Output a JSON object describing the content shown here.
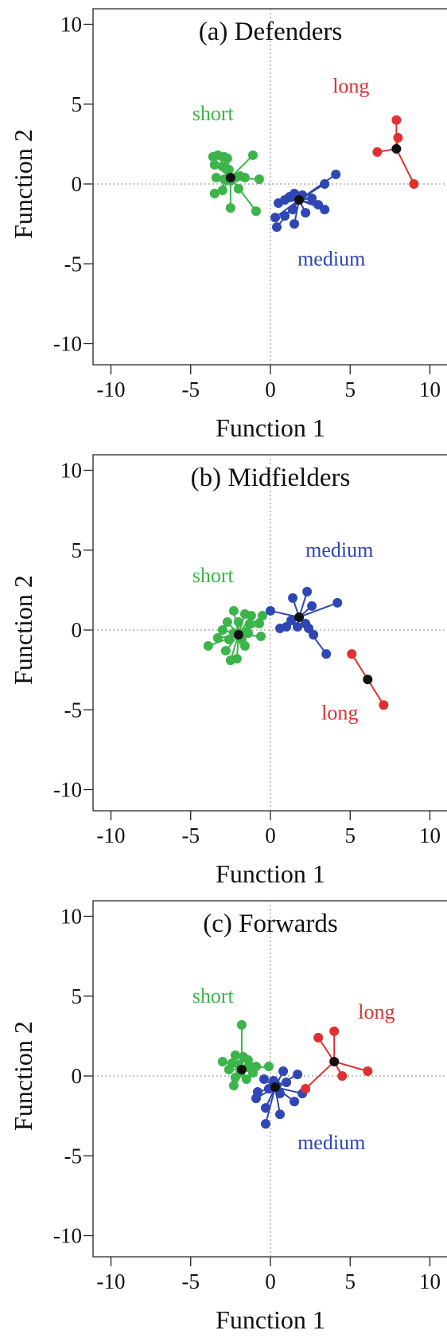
{
  "chart_data": [
    {
      "type": "scatter",
      "title": "(a) Defenders",
      "xlabel": "Function 1",
      "ylabel": "Function 2",
      "xlim": [
        -11,
        11
      ],
      "ylim": [
        -11,
        11
      ],
      "xticks": [
        -10,
        -5,
        0,
        5,
        10
      ],
      "yticks": [
        -10,
        -5,
        0,
        5,
        10
      ],
      "xtick_labels": [
        "-10",
        "-5",
        "0",
        "5",
        "10"
      ],
      "ytick_labels": [
        "-10",
        "-5",
        "0",
        "5",
        "10"
      ],
      "reference_lines": "dotted lines at x=0 and y=0",
      "groups": [
        {
          "name": "short",
          "color": "#3bb44a",
          "centroid": [
            -2.5,
            0.4
          ],
          "points": [
            [
              -3.6,
              1.7
            ],
            [
              -3.3,
              1.8
            ],
            [
              -2.9,
              1.7
            ],
            [
              -2.7,
              1.6
            ],
            [
              -1.1,
              1.8
            ],
            [
              -3.5,
              1.2
            ],
            [
              -3.0,
              1.1
            ],
            [
              -2.6,
              0.9
            ],
            [
              -1.9,
              0.5
            ],
            [
              -3.4,
              0.4
            ],
            [
              -2.9,
              0.3
            ],
            [
              -2.5,
              0.2
            ],
            [
              -2.2,
              0.4
            ],
            [
              -1.6,
              0.4
            ],
            [
              -0.7,
              0.3
            ],
            [
              -3.5,
              -0.6
            ],
            [
              -3.0,
              -0.4
            ],
            [
              -2.0,
              -0.3
            ],
            [
              -2.5,
              -1.5
            ],
            [
              -0.9,
              -1.7
            ]
          ]
        },
        {
          "name": "medium",
          "color": "#2e47b4",
          "centroid": [
            1.8,
            -1.0
          ],
          "points": [
            [
              4.1,
              0.6
            ],
            [
              3.4,
              0.0
            ],
            [
              0.5,
              -1.2
            ],
            [
              0.9,
              -1.0
            ],
            [
              1.2,
              -0.8
            ],
            [
              1.5,
              -0.6
            ],
            [
              2.0,
              -0.7
            ],
            [
              2.6,
              -0.9
            ],
            [
              3.0,
              -1.3
            ],
            [
              3.4,
              -1.6
            ],
            [
              1.4,
              -1.6
            ],
            [
              2.2,
              -1.8
            ],
            [
              0.3,
              -2.1
            ],
            [
              0.9,
              -2.0
            ],
            [
              0.4,
              -2.7
            ],
            [
              1.5,
              -2.5
            ]
          ]
        },
        {
          "name": "long",
          "color": "#e03030",
          "centroid": [
            7.9,
            2.2
          ],
          "points": [
            [
              7.9,
              4.0
            ],
            [
              8.0,
              2.9
            ],
            [
              6.7,
              2.0
            ],
            [
              9.0,
              0.0
            ]
          ]
        }
      ],
      "annotations": [
        {
          "text": "short",
          "color": "#3bb44a",
          "x": -4.9,
          "y": 4.0
        },
        {
          "text": "medium",
          "color": "#2e47b4",
          "x": 1.7,
          "y": -5.1
        },
        {
          "text": "long",
          "color": "#e03030",
          "x": 3.9,
          "y": 5.7
        }
      ]
    },
    {
      "type": "scatter",
      "title": "(b) Midfielders",
      "xlabel": "Function 1",
      "ylabel": "Function 2",
      "xlim": [
        -11,
        11
      ],
      "ylim": [
        -11,
        11
      ],
      "xticks": [
        -10,
        -5,
        0,
        5,
        10
      ],
      "yticks": [
        -10,
        -5,
        0,
        5,
        10
      ],
      "xtick_labels": [
        "-10",
        "-5",
        "0",
        "5",
        "10"
      ],
      "ytick_labels": [
        "-10",
        "-5",
        "0",
        "5",
        "10"
      ],
      "reference_lines": "dotted lines at x=0 and y=0",
      "groups": [
        {
          "name": "short",
          "color": "#3bb44a",
          "centroid": [
            -2.0,
            -0.3
          ],
          "points": [
            [
              -2.3,
              1.2
            ],
            [
              -1.6,
              1.0
            ],
            [
              -1.2,
              0.9
            ],
            [
              -0.5,
              0.9
            ],
            [
              -2.7,
              0.5
            ],
            [
              -2.0,
              0.5
            ],
            [
              -1.3,
              0.4
            ],
            [
              -0.7,
              0.4
            ],
            [
              -3.0,
              0.0
            ],
            [
              -2.3,
              -0.2
            ],
            [
              -1.4,
              -0.2
            ],
            [
              -0.6,
              -0.4
            ],
            [
              -3.3,
              -0.5
            ],
            [
              -2.6,
              -0.6
            ],
            [
              -1.8,
              -0.6
            ],
            [
              -3.9,
              -1.0
            ],
            [
              -1.6,
              -1.0
            ],
            [
              -2.8,
              -1.3
            ],
            [
              -2.5,
              -1.9
            ],
            [
              -2.1,
              -1.8
            ]
          ]
        },
        {
          "name": "medium",
          "color": "#2e47b4",
          "centroid": [
            1.8,
            0.8
          ],
          "points": [
            [
              2.3,
              2.4
            ],
            [
              1.4,
              2.0
            ],
            [
              4.2,
              1.7
            ],
            [
              2.6,
              1.5
            ],
            [
              0.0,
              1.2
            ],
            [
              1.3,
              0.6
            ],
            [
              2.2,
              0.4
            ],
            [
              0.6,
              0.1
            ],
            [
              1.0,
              0.2
            ],
            [
              1.7,
              0.2
            ],
            [
              2.4,
              0.1
            ],
            [
              2.7,
              -0.3
            ],
            [
              3.5,
              -1.5
            ]
          ]
        },
        {
          "name": "long",
          "color": "#e03030",
          "centroid": [
            6.1,
            -3.1
          ],
          "points": [
            [
              5.1,
              -1.5
            ],
            [
              7.1,
              -4.7
            ]
          ]
        }
      ],
      "annotations": [
        {
          "text": "short",
          "color": "#3bb44a",
          "x": -4.9,
          "y": 3.0
        },
        {
          "text": "medium",
          "color": "#2e47b4",
          "x": 2.2,
          "y": 4.6
        },
        {
          "text": "long",
          "color": "#e03030",
          "x": 3.2,
          "y": -5.6
        }
      ]
    },
    {
      "type": "scatter",
      "title": "(c) Forwards",
      "xlabel": "Function 1",
      "ylabel": "Function 2",
      "xlim": [
        -11,
        11
      ],
      "ylim": [
        -11,
        11
      ],
      "xticks": [
        -10,
        -5,
        0,
        5,
        10
      ],
      "yticks": [
        -10,
        -5,
        0,
        5,
        10
      ],
      "xtick_labels": [
        "-10",
        "-5",
        "0",
        "5",
        "10"
      ],
      "ytick_labels": [
        "-10",
        "-5",
        "0",
        "5",
        "10"
      ],
      "reference_lines": "dotted lines at x=0 and y=0",
      "groups": [
        {
          "name": "short",
          "color": "#3bb44a",
          "centroid": [
            -1.8,
            0.4
          ],
          "points": [
            [
              -1.8,
              3.2
            ],
            [
              -2.2,
              1.3
            ],
            [
              -1.7,
              1.2
            ],
            [
              -1.4,
              1.0
            ],
            [
              -3.0,
              0.9
            ],
            [
              -2.4,
              0.8
            ],
            [
              -2.0,
              0.7
            ],
            [
              -1.3,
              0.6
            ],
            [
              -0.9,
              0.6
            ],
            [
              -0.1,
              0.6
            ],
            [
              -2.6,
              0.4
            ],
            [
              -1.9,
              0.2
            ],
            [
              -1.1,
              0.2
            ],
            [
              -2.2,
              -0.1
            ],
            [
              -1.5,
              -0.2
            ],
            [
              -2.3,
              -0.6
            ]
          ]
        },
        {
          "name": "medium",
          "color": "#2e47b4",
          "centroid": [
            0.3,
            -0.7
          ],
          "points": [
            [
              0.8,
              0.3
            ],
            [
              1.7,
              0.1
            ],
            [
              -0.4,
              -0.2
            ],
            [
              0.2,
              -0.3
            ],
            [
              1.0,
              -0.4
            ],
            [
              0.4,
              -0.6
            ],
            [
              -0.1,
              -0.8
            ],
            [
              -0.8,
              -1.0
            ],
            [
              0.6,
              -1.1
            ],
            [
              2.0,
              -1.1
            ],
            [
              1.5,
              -1.6
            ],
            [
              -0.9,
              -1.4
            ],
            [
              -0.3,
              -2.0
            ],
            [
              0.6,
              -2.4
            ],
            [
              -0.3,
              -3.0
            ]
          ]
        },
        {
          "name": "long",
          "color": "#e03030",
          "centroid": [
            4.0,
            0.9
          ],
          "points": [
            [
              4.0,
              2.8
            ],
            [
              3.0,
              2.4
            ],
            [
              6.1,
              0.3
            ],
            [
              4.5,
              0.0
            ],
            [
              2.2,
              -0.8
            ]
          ]
        }
      ],
      "annotations": [
        {
          "text": "short",
          "color": "#3bb44a",
          "x": -4.9,
          "y": 4.6
        },
        {
          "text": "medium",
          "color": "#2e47b4",
          "x": 1.7,
          "y": -4.6
        },
        {
          "text": "long",
          "color": "#e03030",
          "x": 5.5,
          "y": 3.6
        }
      ]
    }
  ]
}
